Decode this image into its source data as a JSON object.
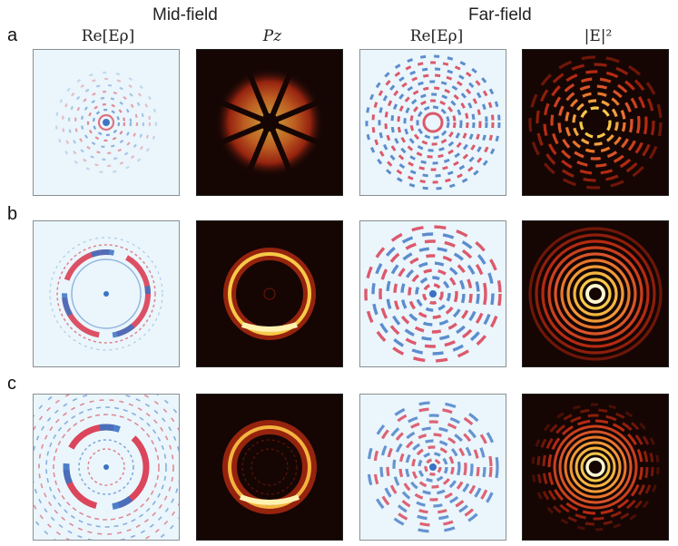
{
  "header": {
    "midfield_title": "Mid-field",
    "farfield_title": "Far-field"
  },
  "columns": [
    {
      "label": "Re[Eρ]"
    },
    {
      "label": "Pz"
    },
    {
      "label": "Re[Eρ]"
    },
    {
      "label": "|E|²"
    }
  ],
  "rows": [
    {
      "label": "a"
    },
    {
      "label": "b"
    },
    {
      "label": "c"
    }
  ],
  "colors": {
    "field_background": "#eaf6fb",
    "field_red": "#d9334a",
    "field_blue": "#3a72c4",
    "intensity_background": "#150604",
    "intensity_mid": "#b52a12",
    "intensity_high": "#f7c948"
  }
}
